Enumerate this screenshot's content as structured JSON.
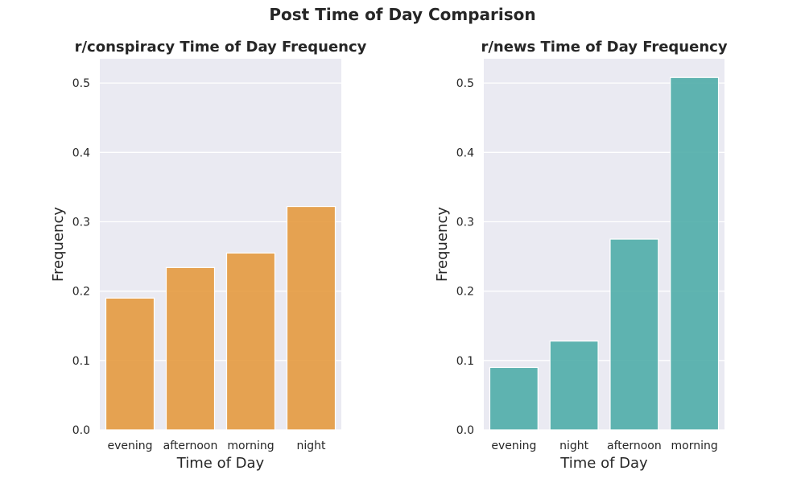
{
  "figure": {
    "title": "Post Time of Day Comparison"
  },
  "chart_data": [
    {
      "type": "bar",
      "title": "r/conspiracy Time of Day Frequency",
      "xlabel": "Time of Day",
      "ylabel": "Frequency",
      "categories": [
        "evening",
        "afternoon",
        "morning",
        "night"
      ],
      "values": [
        0.19,
        0.234,
        0.255,
        0.322
      ],
      "ylim": [
        0,
        0.535
      ],
      "yticks": [
        "0.0",
        "0.1",
        "0.2",
        "0.3",
        "0.4",
        "0.5"
      ],
      "color": "#e49a3f",
      "background": "#eaeaf2",
      "grid": true
    },
    {
      "type": "bar",
      "title": "r/news Time of Day Frequency",
      "xlabel": "Time of Day",
      "ylabel": "Frequency",
      "categories": [
        "evening",
        "night",
        "afternoon",
        "morning"
      ],
      "values": [
        0.09,
        0.128,
        0.275,
        0.508
      ],
      "ylim": [
        0,
        0.535
      ],
      "yticks": [
        "0.0",
        "0.1",
        "0.2",
        "0.3",
        "0.4",
        "0.5"
      ],
      "color": "#4fada9",
      "background": "#eaeaf2",
      "grid": true
    }
  ]
}
